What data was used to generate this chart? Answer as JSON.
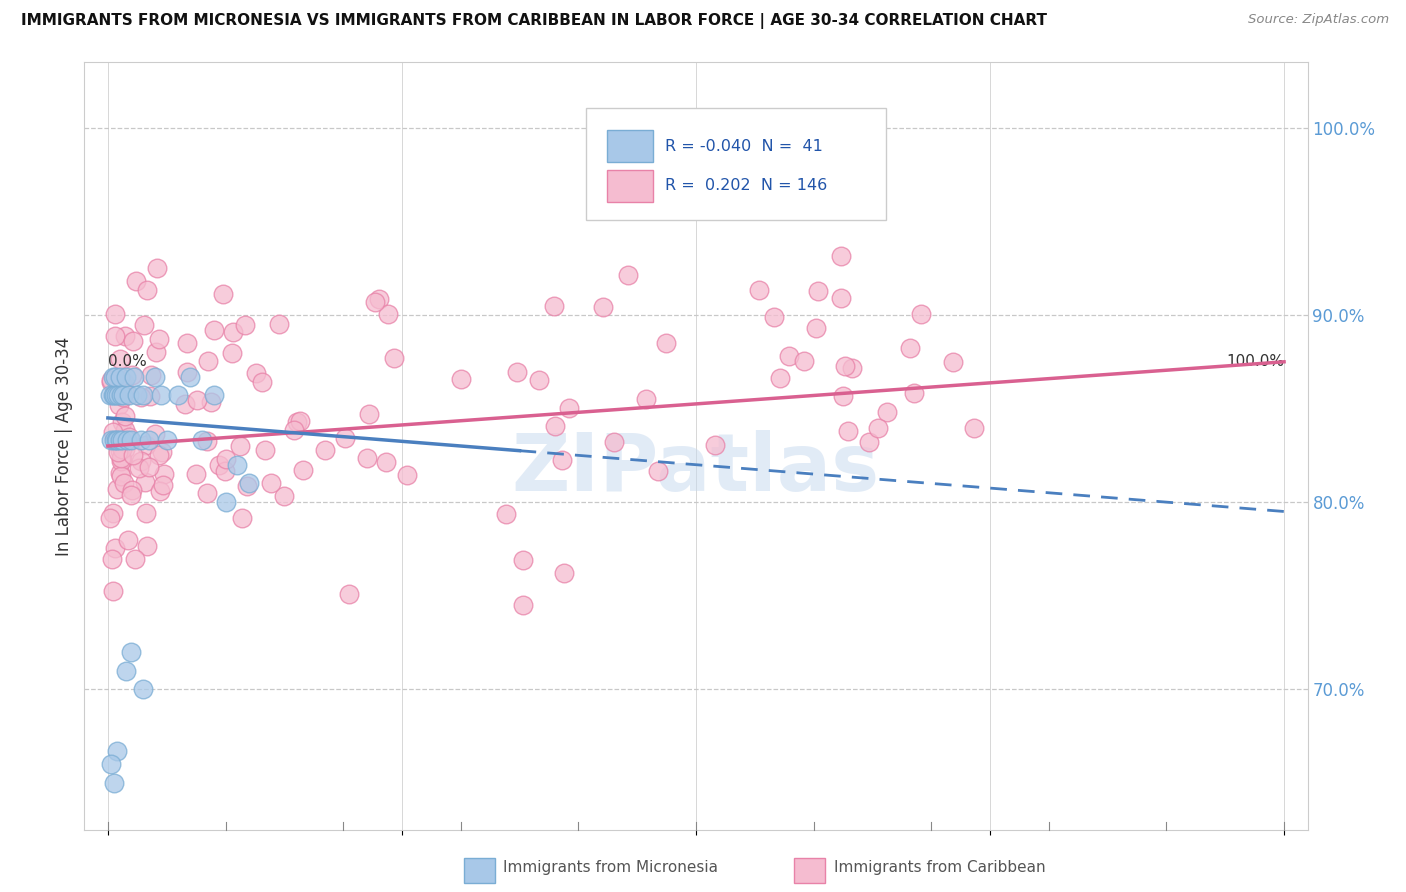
{
  "title": "IMMIGRANTS FROM MICRONESIA VS IMMIGRANTS FROM CARIBBEAN IN LABOR FORCE | AGE 30-34 CORRELATION CHART",
  "source": "Source: ZipAtlas.com",
  "ylabel": "In Labor Force | Age 30-34",
  "micronesia_color": "#a8c8e8",
  "caribbean_color": "#f5bcd0",
  "micronesia_edge": "#7aadd4",
  "caribbean_edge": "#e882a8",
  "trend_blue": "#4a7fbf",
  "trend_pink": "#d96090",
  "watermark": "ZIPatlas",
  "ylim_low": 0.625,
  "ylim_high": 1.035,
  "xlim_low": -0.02,
  "xlim_high": 1.02,
  "yticks": [
    0.7,
    0.8,
    0.9,
    1.0
  ],
  "ytick_labels": [
    "70.0%",
    "80.0%",
    "90.0%",
    "100.0%"
  ],
  "xtick_labels_left": "0.0%",
  "xtick_labels_right": "100.0%",
  "legend_text": [
    "R = -0.040  N =  41",
    "R =  0.202  N = 146"
  ],
  "blue_trend_start_y": 0.845,
  "blue_trend_end_y": 0.795,
  "blue_trend_start_x": 0.0,
  "blue_trend_end_x": 1.0,
  "pink_trend_start_y": 0.83,
  "pink_trend_end_y": 0.875,
  "pink_trend_start_x": 0.0,
  "pink_trend_end_x": 1.0
}
